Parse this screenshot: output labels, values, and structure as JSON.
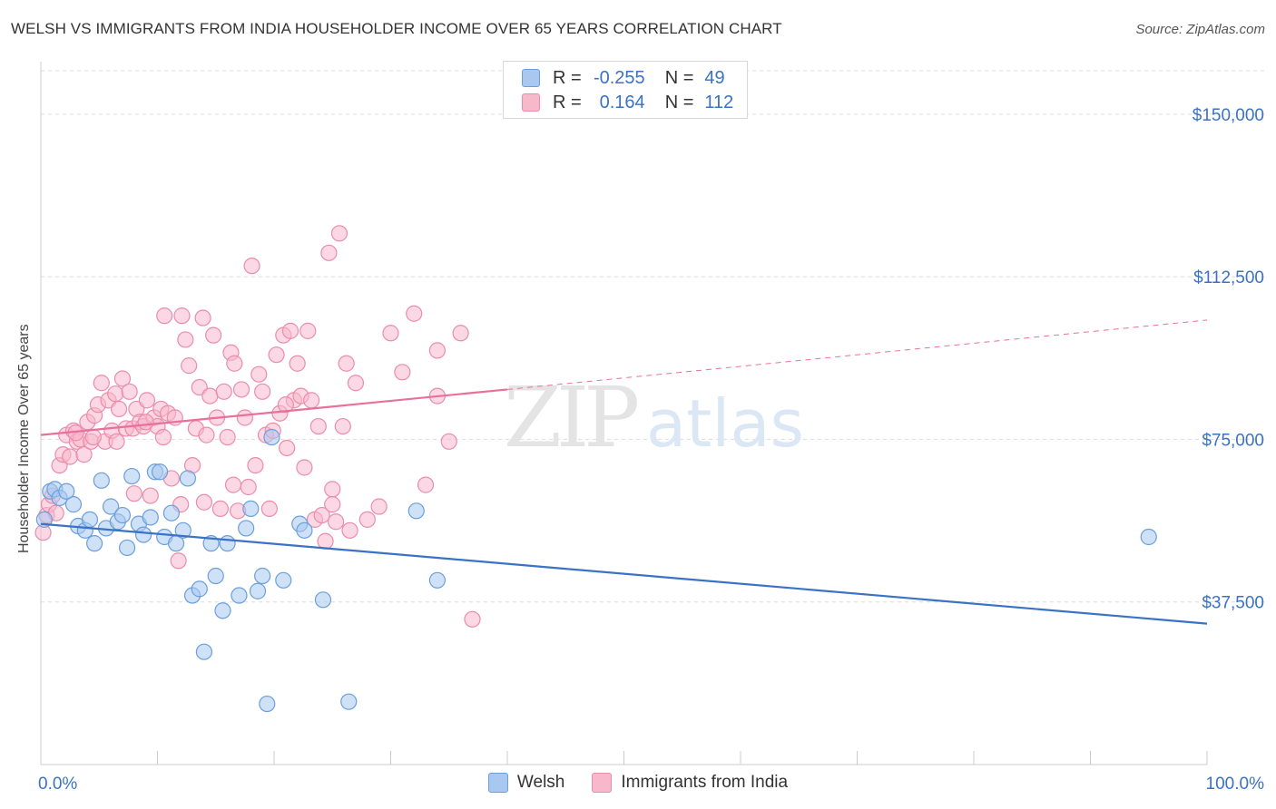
{
  "title": "WELSH VS IMMIGRANTS FROM INDIA HOUSEHOLDER INCOME OVER 65 YEARS CORRELATION CHART",
  "source": "Source: ZipAtlas.com",
  "watermark": {
    "zip": "ZIP",
    "atlas": "atlas"
  },
  "legend": {
    "welsh": {
      "r_label": "R =",
      "r_value": "-0.255",
      "n_label": "N =",
      "n_value": "49"
    },
    "india": {
      "r_label": "R =",
      "r_value": "0.164",
      "n_label": "N =",
      "n_value": "112"
    }
  },
  "colors": {
    "welsh_fill": "#a8c8f0",
    "welsh_stroke": "#6a9fdc",
    "welsh_line": "#3a72c6",
    "india_fill": "#f7b8cc",
    "india_stroke": "#eb8cab",
    "india_line": "#e8709a",
    "axis_text": "#3a72c6"
  },
  "chart_data": {
    "type": "scatter",
    "ylabel": "Householder Income Over 65 years",
    "xlim": [
      0,
      100
    ],
    "ylim": [
      0,
      160000
    ],
    "x_tick_labels": [
      "0.0%",
      "100.0%"
    ],
    "y_ticks": [
      37500,
      75000,
      112500,
      150000
    ],
    "y_tick_labels": [
      "$37,500",
      "$75,000",
      "$112,500",
      "$150,000"
    ],
    "grid": true,
    "legend_position": "top-center",
    "series": [
      {
        "name": "Welsh",
        "trend": {
          "x0": 0,
          "y0": 55500,
          "x1": 100,
          "y1": 32500
        },
        "points": [
          [
            0.3,
            56500
          ],
          [
            0.8,
            63000
          ],
          [
            1.2,
            63500
          ],
          [
            1.6,
            61500
          ],
          [
            2.2,
            63000
          ],
          [
            2.8,
            60000
          ],
          [
            3.2,
            55000
          ],
          [
            3.8,
            54000
          ],
          [
            4.2,
            56500
          ],
          [
            4.6,
            51000
          ],
          [
            5.2,
            65500
          ],
          [
            5.6,
            54500
          ],
          [
            6.0,
            59500
          ],
          [
            6.6,
            56000
          ],
          [
            7.0,
            57500
          ],
          [
            7.4,
            50000
          ],
          [
            7.8,
            66500
          ],
          [
            8.4,
            55500
          ],
          [
            8.8,
            53000
          ],
          [
            9.4,
            57000
          ],
          [
            9.8,
            67500
          ],
          [
            10.2,
            67500
          ],
          [
            10.6,
            52500
          ],
          [
            11.2,
            58000
          ],
          [
            11.6,
            51000
          ],
          [
            12.2,
            54000
          ],
          [
            12.6,
            66000
          ],
          [
            13.0,
            39000
          ],
          [
            13.6,
            40500
          ],
          [
            14.0,
            26000
          ],
          [
            14.6,
            51000
          ],
          [
            15.0,
            43500
          ],
          [
            15.6,
            35500
          ],
          [
            16.0,
            51000
          ],
          [
            17.0,
            39000
          ],
          [
            17.6,
            54500
          ],
          [
            18.0,
            59000
          ],
          [
            18.6,
            40000
          ],
          [
            19.0,
            43500
          ],
          [
            19.4,
            14000
          ],
          [
            19.8,
            75500
          ],
          [
            20.8,
            42500
          ],
          [
            22.2,
            55500
          ],
          [
            22.6,
            54000
          ],
          [
            24.2,
            38000
          ],
          [
            26.4,
            14500
          ],
          [
            32.2,
            58500
          ],
          [
            34.0,
            42500
          ],
          [
            95.0,
            52500
          ]
        ]
      },
      {
        "name": "Immigrants from India",
        "trend": {
          "x0": 0,
          "y0": 76000,
          "x1": 40,
          "y1": 86500,
          "dash_x1": 100,
          "dash_y1": 102500
        },
        "points": [
          [
            0.2,
            53500
          ],
          [
            0.5,
            57500
          ],
          [
            0.7,
            60000
          ],
          [
            1.0,
            62000
          ],
          [
            1.3,
            58000
          ],
          [
            1.6,
            69000
          ],
          [
            1.9,
            71500
          ],
          [
            2.2,
            76000
          ],
          [
            2.5,
            71000
          ],
          [
            2.8,
            77000
          ],
          [
            3.1,
            74500
          ],
          [
            3.4,
            75000
          ],
          [
            3.7,
            71500
          ],
          [
            4.0,
            79000
          ],
          [
            4.3,
            74500
          ],
          [
            4.6,
            80500
          ],
          [
            4.9,
            83000
          ],
          [
            5.2,
            88000
          ],
          [
            5.5,
            74500
          ],
          [
            5.8,
            84000
          ],
          [
            6.1,
            77000
          ],
          [
            6.4,
            85500
          ],
          [
            6.7,
            82000
          ],
          [
            7.0,
            89000
          ],
          [
            7.3,
            77500
          ],
          [
            7.6,
            86000
          ],
          [
            7.9,
            77500
          ],
          [
            8.2,
            82000
          ],
          [
            8.5,
            79000
          ],
          [
            8.8,
            78000
          ],
          [
            9.1,
            84000
          ],
          [
            9.4,
            62000
          ],
          [
            9.7,
            80000
          ],
          [
            10.0,
            78000
          ],
          [
            10.3,
            82000
          ],
          [
            10.6,
            103500
          ],
          [
            10.9,
            81000
          ],
          [
            11.2,
            66000
          ],
          [
            11.5,
            80000
          ],
          [
            11.8,
            47000
          ],
          [
            12.1,
            103500
          ],
          [
            12.4,
            98000
          ],
          [
            12.7,
            92000
          ],
          [
            13.0,
            69000
          ],
          [
            13.3,
            77500
          ],
          [
            13.6,
            87000
          ],
          [
            13.9,
            103000
          ],
          [
            14.2,
            76000
          ],
          [
            14.5,
            85000
          ],
          [
            14.8,
            99000
          ],
          [
            15.1,
            80000
          ],
          [
            15.4,
            59000
          ],
          [
            15.7,
            86000
          ],
          [
            16.0,
            75500
          ],
          [
            16.3,
            95000
          ],
          [
            16.6,
            92500
          ],
          [
            16.9,
            58500
          ],
          [
            17.2,
            86500
          ],
          [
            17.5,
            80000
          ],
          [
            17.8,
            64000
          ],
          [
            18.1,
            115000
          ],
          [
            18.4,
            69000
          ],
          [
            18.7,
            90000
          ],
          [
            19.0,
            86000
          ],
          [
            19.3,
            76000
          ],
          [
            19.6,
            59000
          ],
          [
            19.9,
            77000
          ],
          [
            20.2,
            94500
          ],
          [
            20.5,
            81000
          ],
          [
            20.8,
            99000
          ],
          [
            21.1,
            73000
          ],
          [
            21.4,
            100000
          ],
          [
            21.7,
            84000
          ],
          [
            22.0,
            92500
          ],
          [
            22.3,
            85000
          ],
          [
            22.6,
            68500
          ],
          [
            22.9,
            100000
          ],
          [
            23.2,
            84000
          ],
          [
            23.5,
            56500
          ],
          [
            23.8,
            78000
          ],
          [
            24.1,
            57500
          ],
          [
            24.4,
            51500
          ],
          [
            24.7,
            118000
          ],
          [
            25.0,
            63500
          ],
          [
            25.3,
            56000
          ],
          [
            25.6,
            122500
          ],
          [
            25.9,
            78000
          ],
          [
            26.2,
            92500
          ],
          [
            26.5,
            54000
          ],
          [
            27.0,
            88000
          ],
          [
            28.0,
            56500
          ],
          [
            29.0,
            59500
          ],
          [
            30.0,
            99500
          ],
          [
            31.0,
            90500
          ],
          [
            32.0,
            104000
          ],
          [
            33.0,
            64500
          ],
          [
            34.0,
            95500
          ],
          [
            35.0,
            74500
          ],
          [
            36.0,
            99500
          ],
          [
            37.0,
            33500
          ],
          [
            3.0,
            76500
          ],
          [
            4.5,
            75500
          ],
          [
            6.5,
            74500
          ],
          [
            8.0,
            62500
          ],
          [
            9.0,
            79000
          ],
          [
            10.5,
            75500
          ],
          [
            12.0,
            60000
          ],
          [
            14.0,
            60500
          ],
          [
            16.5,
            64500
          ],
          [
            21.0,
            83000
          ],
          [
            25.0,
            60000
          ],
          [
            34.0,
            85000
          ]
        ]
      }
    ]
  }
}
